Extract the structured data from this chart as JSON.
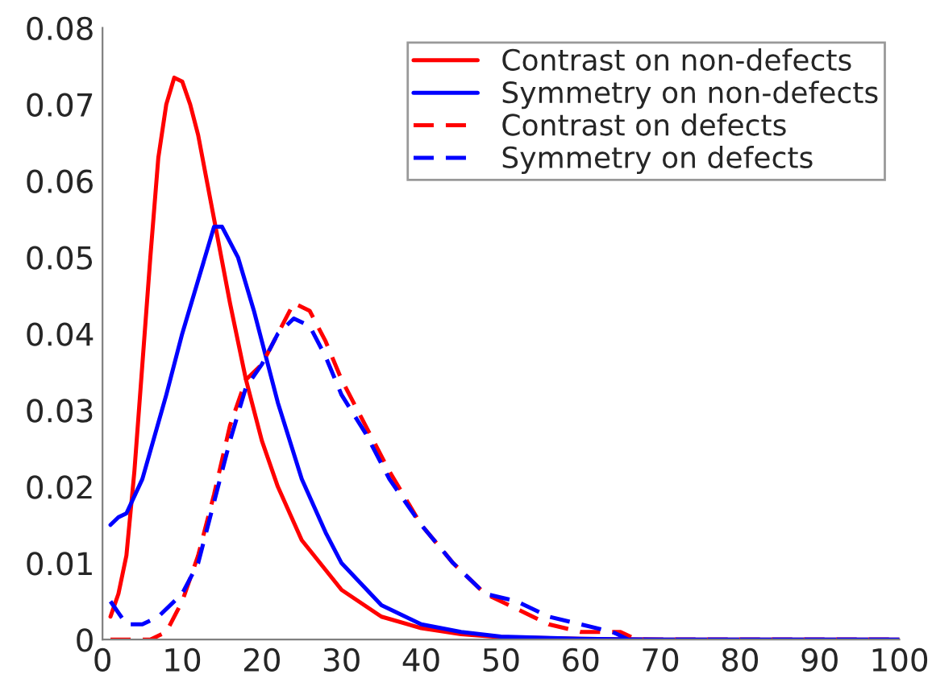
{
  "chart_data": {
    "type": "line",
    "xlim": [
      0,
      100
    ],
    "ylim": [
      0,
      0.08
    ],
    "xticks": [
      0,
      10,
      20,
      30,
      40,
      50,
      60,
      70,
      80,
      90,
      100
    ],
    "yticks": [
      0,
      0.01,
      0.02,
      0.03,
      0.04,
      0.05,
      0.06,
      0.07,
      0.08
    ],
    "grid": false,
    "legend": "top right",
    "marker": "none",
    "series": [
      {
        "name": "Contrast on non-defects",
        "color": "#ff0000",
        "line_style": "solid",
        "x": [
          1,
          2,
          3,
          4,
          5,
          6,
          7,
          8,
          9,
          10,
          11,
          12,
          14,
          16,
          18,
          20,
          22,
          25,
          30,
          35,
          40,
          45,
          50,
          60,
          70,
          100
        ],
        "values": [
          0.003,
          0.006,
          0.011,
          0.022,
          0.036,
          0.05,
          0.063,
          0.07,
          0.0735,
          0.073,
          0.07,
          0.066,
          0.055,
          0.044,
          0.034,
          0.026,
          0.02,
          0.013,
          0.0065,
          0.003,
          0.0015,
          0.0007,
          0.0003,
          0.0001,
          0,
          0
        ]
      },
      {
        "name": "Symmetry on non-defects",
        "color": "#0000ff",
        "line_style": "solid",
        "x": [
          1,
          2,
          3,
          5,
          8,
          10,
          12,
          14,
          15,
          17,
          19,
          20,
          22,
          25,
          28,
          30,
          35,
          40,
          45,
          50,
          60,
          70,
          100
        ],
        "values": [
          0.015,
          0.016,
          0.0165,
          0.021,
          0.032,
          0.04,
          0.047,
          0.054,
          0.054,
          0.05,
          0.043,
          0.039,
          0.031,
          0.021,
          0.014,
          0.01,
          0.0045,
          0.002,
          0.001,
          0.0004,
          0.0001,
          0,
          0
        ]
      },
      {
        "name": "Contrast on defects",
        "color": "#ff0000",
        "line_style": "dashed",
        "x": [
          1,
          6,
          8,
          10,
          12,
          14,
          16,
          18,
          20,
          22,
          24,
          26,
          28,
          30,
          33,
          36,
          40,
          44,
          48,
          52,
          56,
          60,
          65,
          67,
          100
        ],
        "values": [
          0,
          0,
          0.001,
          0.005,
          0.011,
          0.019,
          0.028,
          0.034,
          0.036,
          0.04,
          0.044,
          0.043,
          0.039,
          0.034,
          0.028,
          0.022,
          0.015,
          0.01,
          0.006,
          0.004,
          0.002,
          0.001,
          0.001,
          0,
          0
        ]
      },
      {
        "name": "Symmetry on defects",
        "color": "#0000ff",
        "line_style": "dashed",
        "x": [
          1,
          3,
          5,
          7,
          10,
          12,
          14,
          16,
          18,
          20,
          22,
          24,
          26,
          28,
          30,
          33,
          36,
          40,
          44,
          48,
          52,
          56,
          60,
          64,
          66,
          100
        ],
        "values": [
          0.005,
          0.002,
          0.002,
          0.003,
          0.006,
          0.01,
          0.018,
          0.026,
          0.033,
          0.036,
          0.04,
          0.042,
          0.041,
          0.037,
          0.032,
          0.027,
          0.021,
          0.015,
          0.01,
          0.006,
          0.005,
          0.003,
          0.002,
          0.001,
          0,
          0
        ]
      }
    ]
  }
}
